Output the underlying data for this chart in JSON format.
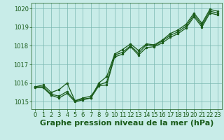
{
  "xlabel": "Graphe pression niveau de la mer (hPa)",
  "background_color": "#c8ece8",
  "grid_color": "#7ab8b0",
  "line_color": "#1a5c1a",
  "ylim": [
    1014.6,
    1020.3
  ],
  "xlim": [
    -0.5,
    23.5
  ],
  "yticks": [
    1015,
    1016,
    1017,
    1018,
    1019,
    1020
  ],
  "xticks": [
    0,
    1,
    2,
    3,
    4,
    5,
    6,
    7,
    8,
    9,
    10,
    11,
    12,
    13,
    14,
    15,
    16,
    17,
    18,
    19,
    20,
    21,
    22,
    23
  ],
  "series": [
    [
      1015.8,
      1015.9,
      1015.5,
      1015.65,
      1016.0,
      1015.05,
      1015.15,
      1015.2,
      1016.0,
      1016.35,
      1017.55,
      1017.8,
      1018.1,
      1017.75,
      1018.1,
      1018.05,
      1018.3,
      1018.65,
      1018.85,
      1019.15,
      1019.75,
      1019.2,
      1019.95,
      1019.85
    ],
    [
      1015.8,
      1015.8,
      1015.4,
      1015.3,
      1015.55,
      1015.05,
      1015.2,
      1015.3,
      1015.9,
      1016.05,
      1017.5,
      1017.65,
      1018.0,
      1017.6,
      1018.05,
      1018.0,
      1018.25,
      1018.55,
      1018.75,
      1019.05,
      1019.65,
      1019.1,
      1019.85,
      1019.75
    ],
    [
      1015.75,
      1015.75,
      1015.35,
      1015.2,
      1015.45,
      1015.0,
      1015.1,
      1015.2,
      1015.85,
      1015.9,
      1017.4,
      1017.55,
      1017.95,
      1017.5,
      1017.9,
      1017.95,
      1018.15,
      1018.45,
      1018.65,
      1018.95,
      1019.55,
      1019.0,
      1019.75,
      1019.65
    ]
  ],
  "marker": ".",
  "markersize": 3,
  "linewidth": 0.9,
  "xlabel_fontsize": 8,
  "tick_fontsize": 6,
  "fig_width": 3.2,
  "fig_height": 2.0,
  "dpi": 100
}
